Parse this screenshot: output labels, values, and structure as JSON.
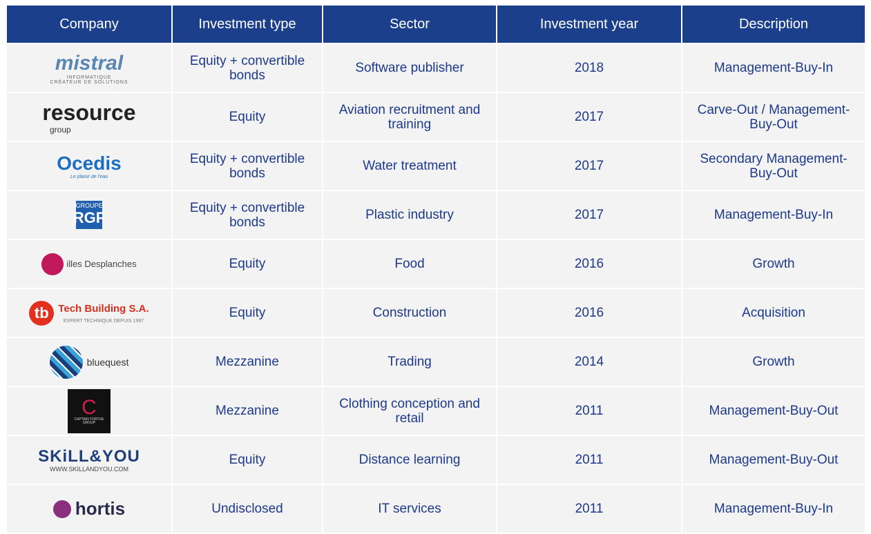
{
  "table": {
    "headers": [
      "Company",
      "Investment type",
      "Sector",
      "Investment year",
      "Description"
    ],
    "rows": [
      {
        "logo": [
          "mistral",
          "INFORMATIQUE",
          "CRÉATEUR DE SOLUTIONS"
        ],
        "investment_type": "Equity + convertible bonds",
        "sector": "Software publisher",
        "year": 2018,
        "description": "Management-Buy-In"
      },
      {
        "logo": [
          "resource",
          "group"
        ],
        "investment_type": "Equity",
        "sector": "Aviation recruitment and training",
        "year": 2017,
        "description": "Carve-Out / Management-Buy-Out"
      },
      {
        "logo": [
          "Ocedis",
          "Le plaisir de l'eau"
        ],
        "investment_type": "Equity + convertible bonds",
        "sector": "Water treatment",
        "year": 2017,
        "description": "Secondary Management-Buy-Out"
      },
      {
        "logo": [
          "GROUPE",
          "RGF"
        ],
        "investment_type": "Equity + convertible bonds",
        "sector": "Plastic industry",
        "year": 2017,
        "description": "Management-Buy-In"
      },
      {
        "logo": [
          "illes Desplanches"
        ],
        "investment_type": "Equity",
        "sector": "Food",
        "year": 2016,
        "description": "Growth"
      },
      {
        "logo": [
          "tb",
          "Tech Building S.A.",
          "EXPERT TECHNIQUE DEPUIS 1997"
        ],
        "investment_type": "Equity",
        "sector": "Construction",
        "year": 2016,
        "description": "Acquisition"
      },
      {
        "logo": [
          "bluequest"
        ],
        "investment_type": "Mezzanine",
        "sector": "Trading",
        "year": 2014,
        "description": "Growth"
      },
      {
        "logo": [
          "C",
          "CAPTAIN TORTUE",
          "GROUP"
        ],
        "investment_type": "Mezzanine",
        "sector": "Clothing conception and retail",
        "year": 2011,
        "description": "Management-Buy-Out"
      },
      {
        "logo": [
          "SKiLL&YOU",
          "WWW.SKILLANDYOU.COM"
        ],
        "investment_type": "Equity",
        "sector": "Distance learning",
        "year": 2011,
        "description": "Management-Buy-Out"
      },
      {
        "logo": [
          "hortis"
        ],
        "investment_type": "Undisclosed",
        "sector": "IT services",
        "year": 2011,
        "description": "Management-Buy-In"
      }
    ]
  }
}
